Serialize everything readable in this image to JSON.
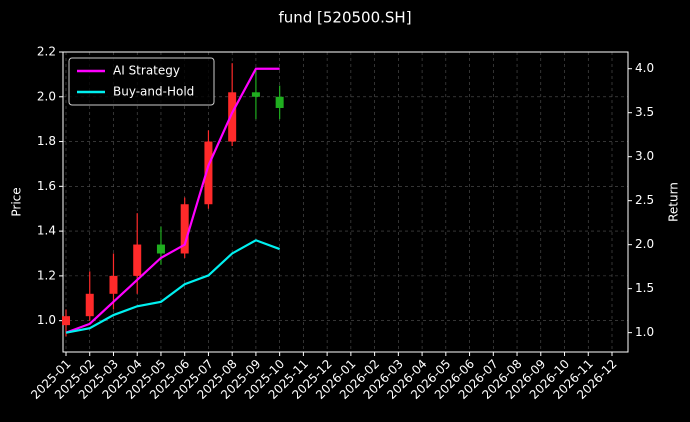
{
  "chart_data": {
    "type": "candlestick",
    "title": "fund [520500.SH]",
    "y_label": "Price",
    "y2_label": "Return",
    "x": [
      "2025-01",
      "2025-02",
      "2025-03",
      "2025-04",
      "2025-05",
      "2025-06",
      "2025-07",
      "2025-08",
      "2025-09",
      "2025-10"
    ],
    "candles": {
      "open": [
        0.98,
        1.02,
        1.12,
        1.2,
        1.34,
        1.3,
        1.52,
        1.8,
        2.02,
        2.0
      ],
      "high": [
        1.05,
        1.22,
        1.3,
        1.48,
        1.42,
        1.55,
        1.85,
        2.15,
        2.12,
        2.05
      ],
      "low": [
        0.93,
        1.0,
        1.05,
        1.12,
        1.25,
        1.28,
        1.5,
        1.78,
        1.9,
        1.9
      ],
      "close": [
        1.02,
        1.12,
        1.2,
        1.34,
        1.3,
        1.52,
        1.8,
        2.02,
        2.0,
        1.95
      ],
      "up_color": "#ff2a2a",
      "down_color": "#1fae1f"
    },
    "series": [
      {
        "name": "AI Strategy",
        "color": "#ff00ff",
        "axis": "y2",
        "values": [
          1.0,
          1.1,
          1.35,
          1.6,
          1.85,
          2.0,
          2.9,
          3.5,
          4.0,
          4.0
        ]
      },
      {
        "name": "Buy-and-Hold",
        "color": "#00f0f0",
        "axis": "y2",
        "values": [
          1.0,
          1.05,
          1.2,
          1.3,
          1.35,
          1.55,
          1.65,
          1.9,
          2.05,
          1.95
        ]
      }
    ],
    "xlim": [
      "2025-01",
      "2026-12"
    ],
    "xticks": [
      "2025-01",
      "2025-02",
      "2025-03",
      "2025-04",
      "2025-05",
      "2025-06",
      "2025-07",
      "2025-08",
      "2025-09",
      "2025-10",
      "2025-11",
      "2025-12",
      "2026-01",
      "2026-02",
      "2026-03",
      "2026-04",
      "2026-05",
      "2026-06",
      "2026-07",
      "2026-08",
      "2026-09",
      "2026-10",
      "2026-11",
      "2026-12"
    ],
    "ylim": [
      0.86,
      2.2
    ],
    "yticks": [
      {
        "value": 1,
        "label": "1.0"
      },
      1.2,
      1.4,
      1.6,
      1.8,
      {
        "value": 2,
        "label": "2.0"
      },
      2.2
    ],
    "y2lim": [
      0.78,
      4.19
    ],
    "y2ticks": [
      {
        "value": 1,
        "label": "1.0"
      },
      1.5,
      {
        "value": 2,
        "label": "2.0"
      },
      2.5,
      {
        "value": 3,
        "label": "3.0"
      },
      3.5,
      {
        "value": 4,
        "label": "4.0"
      }
    ],
    "grid": true,
    "legend": "upper left"
  }
}
